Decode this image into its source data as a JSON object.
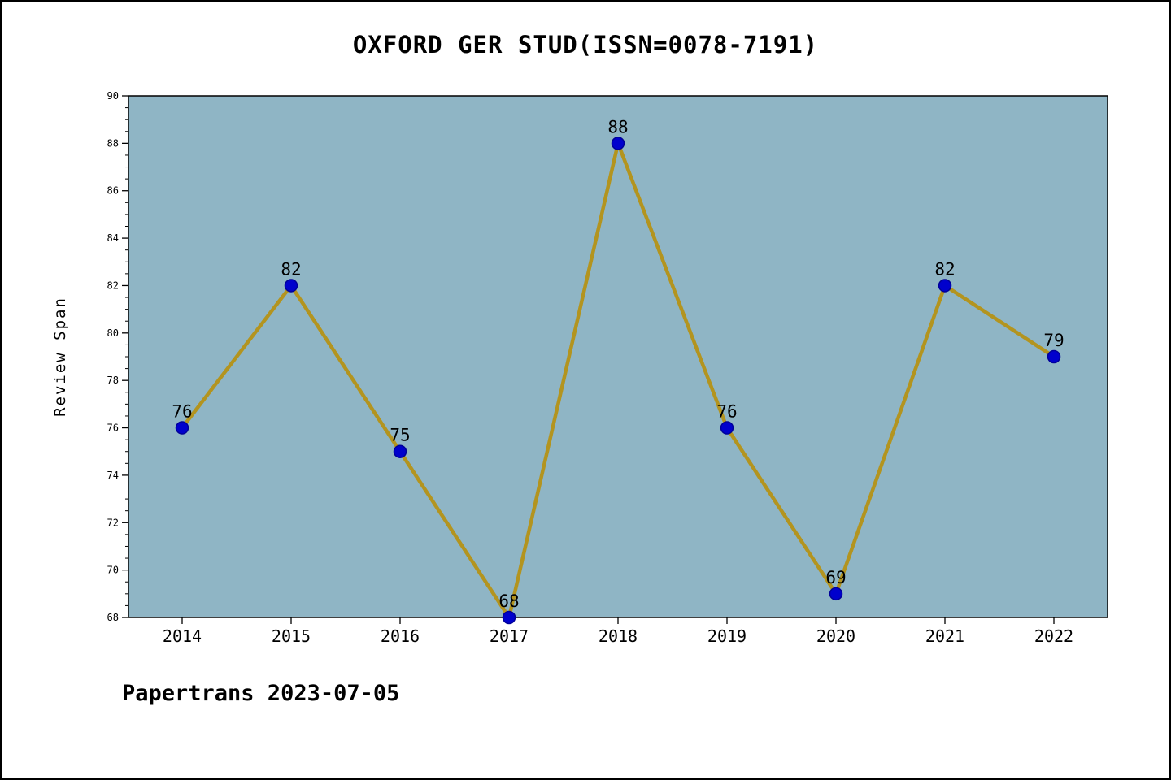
{
  "title": "OXFORD GER STUD(ISSN=0078-7191)",
  "footer": "Papertrans 2023-07-05",
  "chart_data": {
    "type": "line",
    "title": "OXFORD GER STUD(ISSN=0078-7191)",
    "categories": [
      "2014",
      "2015",
      "2016",
      "2017",
      "2018",
      "2019",
      "2020",
      "2021",
      "2022"
    ],
    "values": [
      76,
      82,
      75,
      68,
      88,
      76,
      69,
      82,
      79
    ],
    "xlabel": "",
    "ylabel": "Review Span",
    "ylim": [
      68,
      90
    ],
    "ytick_step": 2,
    "ytick_minor_step": 0.5,
    "grid": false,
    "legend_position": "none",
    "colors": {
      "line": "#b3941f",
      "marker_fill": "#0000cd",
      "marker_edge": "#000099",
      "plot_background": "#8fb5c5",
      "axis": "#000000",
      "text": "#000000"
    }
  }
}
